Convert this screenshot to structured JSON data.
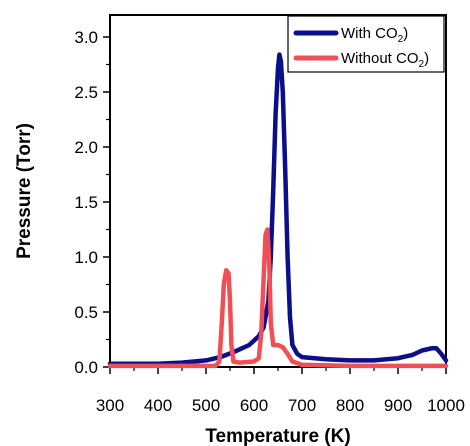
{
  "chart_data": {
    "type": "line",
    "xlabel": "Temperature (K)",
    "ylabel": "Pressure (Torr)",
    "xlim": [
      300,
      1000
    ],
    "ylim": [
      0,
      3.2
    ],
    "xticks": [
      "300",
      "400",
      "500",
      "600",
      "700",
      "800",
      "900",
      "1000"
    ],
    "yticks": [
      "0.0",
      "0.5",
      "1.0",
      "1.5",
      "2.0",
      "2.5",
      "3.0"
    ],
    "grid": false,
    "legend_position": "top-right",
    "series": [
      {
        "name": "With CO2)",
        "legend_main": "With CO",
        "legend_sub": "2",
        "legend_tail": ")",
        "color": "#0b0f8a",
        "points": [
          [
            300,
            0.03
          ],
          [
            400,
            0.03
          ],
          [
            450,
            0.04
          ],
          [
            500,
            0.06
          ],
          [
            530,
            0.09
          ],
          [
            560,
            0.14
          ],
          [
            590,
            0.2
          ],
          [
            610,
            0.28
          ],
          [
            620,
            0.36
          ],
          [
            630,
            0.6
          ],
          [
            635,
            1.0
          ],
          [
            640,
            1.6
          ],
          [
            645,
            2.3
          ],
          [
            650,
            2.72
          ],
          [
            653,
            2.84
          ],
          [
            656,
            2.78
          ],
          [
            660,
            2.5
          ],
          [
            665,
            1.8
          ],
          [
            670,
            1.0
          ],
          [
            675,
            0.45
          ],
          [
            680,
            0.2
          ],
          [
            690,
            0.12
          ],
          [
            700,
            0.09
          ],
          [
            750,
            0.07
          ],
          [
            800,
            0.06
          ],
          [
            850,
            0.06
          ],
          [
            900,
            0.08
          ],
          [
            930,
            0.11
          ],
          [
            950,
            0.15
          ],
          [
            970,
            0.17
          ],
          [
            980,
            0.17
          ],
          [
            990,
            0.12
          ],
          [
            1000,
            0.06
          ]
        ]
      },
      {
        "name": "Without CO2)",
        "legend_main": "Without CO",
        "legend_sub": "2",
        "legend_tail": ")",
        "color": "#f05055",
        "points": [
          [
            300,
            0.01
          ],
          [
            400,
            0.01
          ],
          [
            500,
            0.01
          ],
          [
            520,
            0.01
          ],
          [
            528,
            0.05
          ],
          [
            533,
            0.4
          ],
          [
            537,
            0.75
          ],
          [
            542,
            0.88
          ],
          [
            547,
            0.85
          ],
          [
            550,
            0.6
          ],
          [
            553,
            0.2
          ],
          [
            557,
            0.05
          ],
          [
            570,
            0.04
          ],
          [
            600,
            0.05
          ],
          [
            610,
            0.08
          ],
          [
            615,
            0.3
          ],
          [
            620,
            0.8
          ],
          [
            624,
            1.2
          ],
          [
            628,
            1.25
          ],
          [
            632,
            0.9
          ],
          [
            635,
            0.4
          ],
          [
            640,
            0.2
          ],
          [
            650,
            0.2
          ],
          [
            660,
            0.18
          ],
          [
            670,
            0.12
          ],
          [
            680,
            0.05
          ],
          [
            700,
            0.02
          ],
          [
            800,
            0.01
          ],
          [
            900,
            0.01
          ],
          [
            1000,
            0.01
          ]
        ]
      }
    ]
  }
}
